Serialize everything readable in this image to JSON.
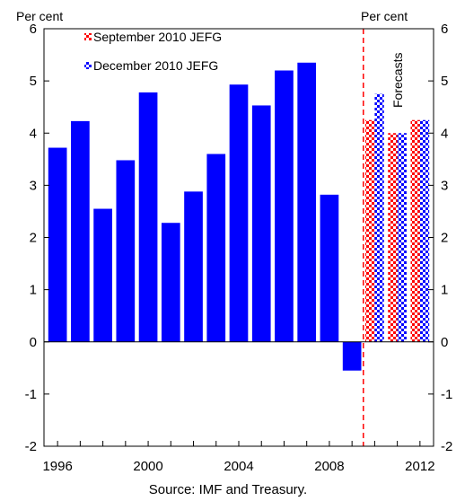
{
  "chart_data": {
    "type": "bar",
    "title": "",
    "y_unit_left": "Per cent",
    "y_unit_right": "Per cent",
    "ylim": [
      -2,
      6
    ],
    "yticks": [
      -2,
      -1,
      0,
      1,
      2,
      3,
      4,
      5,
      6
    ],
    "xlim": [
      1995.4,
      2012.6
    ],
    "xticks": [
      1996,
      2000,
      2004,
      2008,
      2012
    ],
    "grid": false,
    "legend_position": "top-left",
    "forecast_divider": 2009.5,
    "forecast_label": "Forecasts",
    "source": "Source: IMF and Treasury.",
    "series": [
      {
        "name": "",
        "color": "#0000ff",
        "pattern": "solid",
        "points": [
          {
            "x": 1996,
            "y": 3.72
          },
          {
            "x": 1997,
            "y": 4.23
          },
          {
            "x": 1998,
            "y": 2.55
          },
          {
            "x": 1999,
            "y": 3.48
          },
          {
            "x": 2000,
            "y": 4.78
          },
          {
            "x": 2001,
            "y": 2.28
          },
          {
            "x": 2002,
            "y": 2.88
          },
          {
            "x": 2003,
            "y": 3.6
          },
          {
            "x": 2004,
            "y": 4.93
          },
          {
            "x": 2005,
            "y": 4.53
          },
          {
            "x": 2006,
            "y": 5.2
          },
          {
            "x": 2007,
            "y": 5.35
          },
          {
            "x": 2008,
            "y": 2.82
          },
          {
            "x": 2009,
            "y": -0.55
          }
        ]
      },
      {
        "name": "September 2010 JEFG",
        "color": "#ff0000",
        "pattern": "checkered",
        "points": [
          {
            "x": 2010,
            "y": 4.25
          },
          {
            "x": 2011,
            "y": 4.0
          },
          {
            "x": 2012,
            "y": 4.25
          }
        ]
      },
      {
        "name": "December 2010 JEFG",
        "color": "#0000ff",
        "pattern": "checkered",
        "points": [
          {
            "x": 2010,
            "y": 4.75
          },
          {
            "x": 2011,
            "y": 4.0
          },
          {
            "x": 2012,
            "y": 4.25
          }
        ]
      }
    ]
  }
}
